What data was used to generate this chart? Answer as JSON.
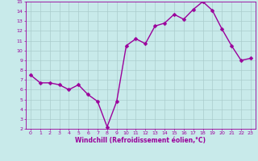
{
  "x": [
    0,
    1,
    2,
    3,
    4,
    5,
    6,
    7,
    8,
    9,
    10,
    11,
    12,
    13,
    14,
    15,
    16,
    17,
    18,
    19,
    20,
    21,
    22,
    23
  ],
  "y": [
    7.5,
    6.7,
    6.7,
    6.5,
    6.0,
    6.5,
    5.5,
    4.8,
    2.2,
    4.8,
    10.5,
    11.2,
    10.7,
    12.5,
    12.8,
    13.7,
    13.2,
    14.2,
    15.0,
    14.1,
    12.2,
    10.5,
    9.0,
    9.2
  ],
  "line_color": "#9b009b",
  "marker_color": "#9b009b",
  "bg_color": "#c8eaea",
  "grid_color": "#aacccc",
  "xlabel": "Windchill (Refroidissement éolien,°C)",
  "xlim": [
    -0.5,
    23.5
  ],
  "ylim": [
    2,
    15
  ],
  "yticks": [
    2,
    3,
    4,
    5,
    6,
    7,
    8,
    9,
    10,
    11,
    12,
    13,
    14,
    15
  ],
  "xticks": [
    0,
    1,
    2,
    3,
    4,
    5,
    6,
    7,
    8,
    9,
    10,
    11,
    12,
    13,
    14,
    15,
    16,
    17,
    18,
    19,
    20,
    21,
    22,
    23
  ],
  "tick_color": "#9b009b",
  "label_color": "#9b009b",
  "line_width": 1.0,
  "marker_size": 2.5,
  "marker_style": "D"
}
